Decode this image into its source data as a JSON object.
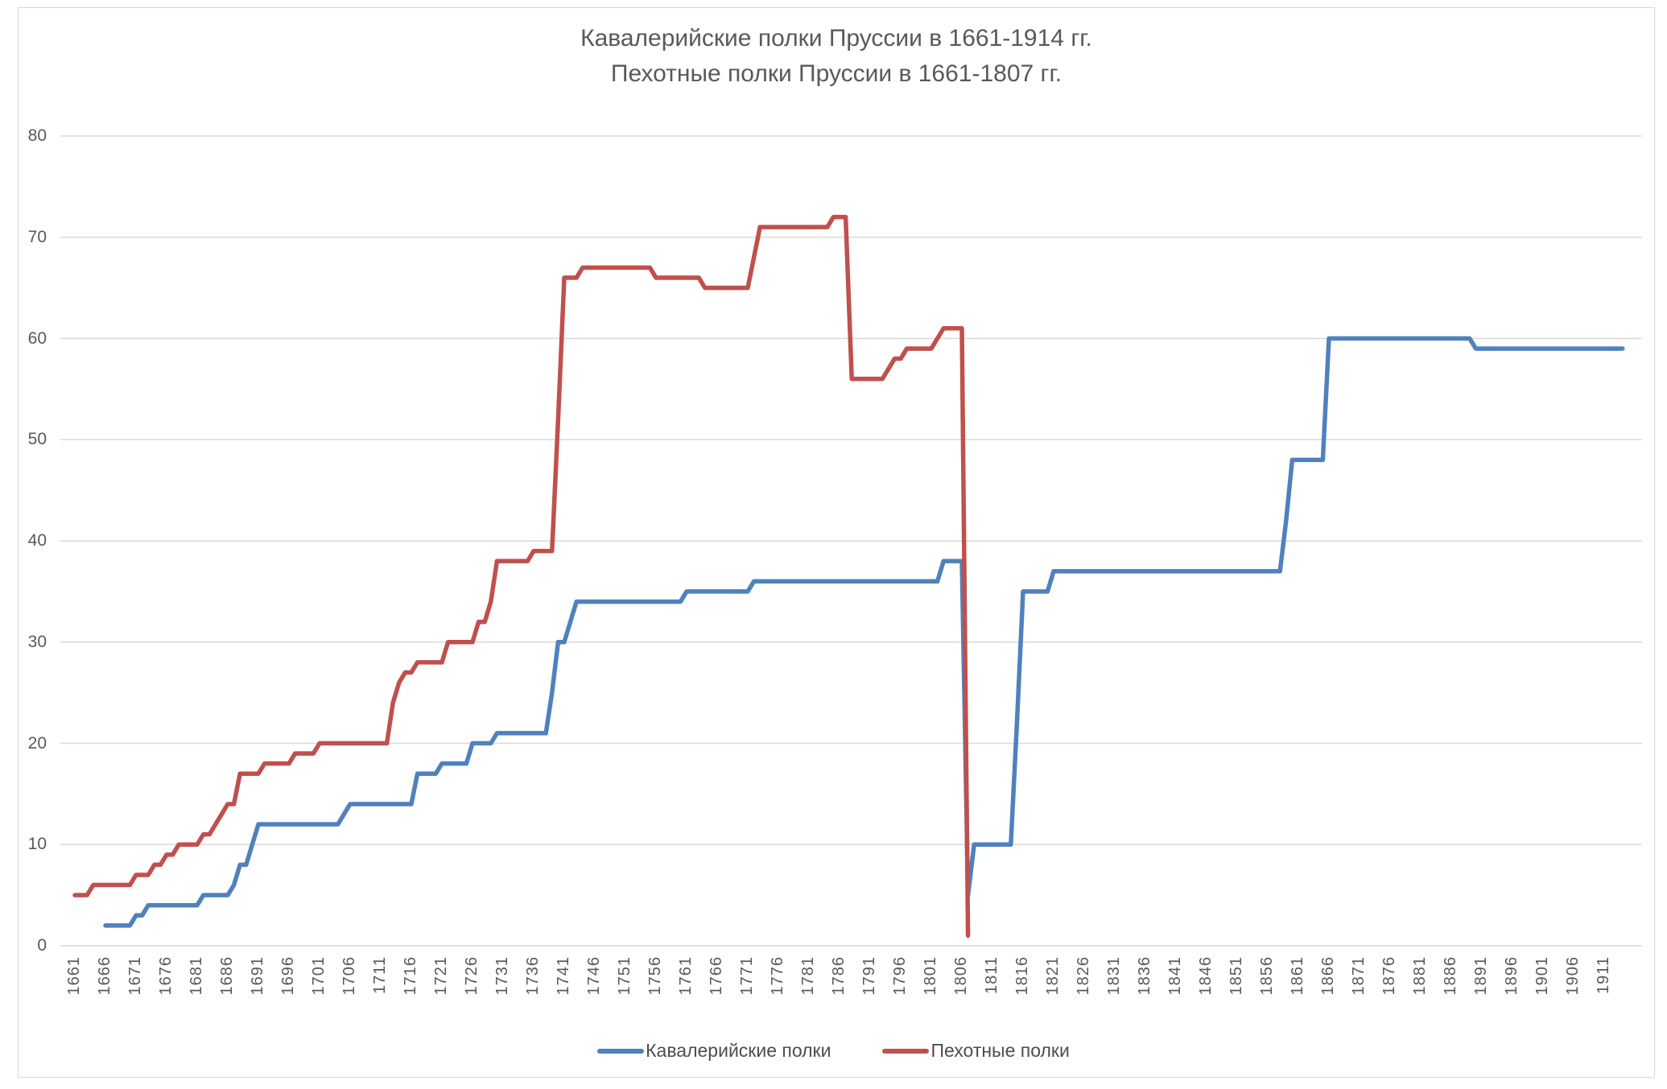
{
  "chart_data": {
    "type": "line",
    "title_line1": "Кавалерийские полки Пруссии в 1661-1914 гг.",
    "title_line2": "Пехотные полки Пруссии в 1661-1807 гг.",
    "grid": true,
    "legend_position": "bottom",
    "background": "#ffffff",
    "gridline_color": "#d9d9d9",
    "text_color": "#595959",
    "x_axis": {
      "start": 1661,
      "end": 1911,
      "tick_step": 5,
      "tick_labels": [
        "1661",
        "1666",
        "1671",
        "1676",
        "1681",
        "1686",
        "1691",
        "1696",
        "1701",
        "1706",
        "1711",
        "1716",
        "1721",
        "1726",
        "1731",
        "1736",
        "1741",
        "1746",
        "1751",
        "1756",
        "1761",
        "1766",
        "1771",
        "1776",
        "1781",
        "1786",
        "1791",
        "1796",
        "1801",
        "1806",
        "1811",
        "1816",
        "1821",
        "1826",
        "1831",
        "1836",
        "1841",
        "1846",
        "1851",
        "1856",
        "1861",
        "1866",
        "1871",
        "1876",
        "1881",
        "1886",
        "1891",
        "1896",
        "1901",
        "1906",
        "1911"
      ]
    },
    "y_axis": {
      "min": 0,
      "max": 80,
      "tick_step": 10,
      "ticks": [
        0,
        10,
        20,
        30,
        40,
        50,
        60,
        70,
        80
      ]
    },
    "series": [
      {
        "name": "Кавалерийские полки",
        "color": "#4F81BD",
        "first_year": 1666,
        "last_year": 1914,
        "segments": [
          [
            1666,
            1670,
            2
          ],
          [
            1671,
            1672,
            3
          ],
          [
            1673,
            1681,
            4
          ],
          [
            1682,
            1686,
            5
          ],
          [
            1687,
            1687,
            6
          ],
          [
            1688,
            1689,
            8
          ],
          [
            1690,
            1690,
            10
          ],
          [
            1691,
            1704,
            12
          ],
          [
            1705,
            1705,
            13
          ],
          [
            1706,
            1716,
            14
          ],
          [
            1717,
            1720,
            17
          ],
          [
            1721,
            1725,
            18
          ],
          [
            1726,
            1729,
            20
          ],
          [
            1730,
            1738,
            21
          ],
          [
            1739,
            1739,
            25
          ],
          [
            1740,
            1741,
            30
          ],
          [
            1742,
            1742,
            32
          ],
          [
            1743,
            1760,
            34
          ],
          [
            1761,
            1771,
            35
          ],
          [
            1772,
            1802,
            36
          ],
          [
            1803,
            1806,
            38
          ],
          [
            1807,
            1807,
            5
          ],
          [
            1808,
            1814,
            10
          ],
          [
            1815,
            1815,
            22
          ],
          [
            1816,
            1820,
            35
          ],
          [
            1821,
            1858,
            37
          ],
          [
            1859,
            1859,
            42
          ],
          [
            1860,
            1865,
            48
          ],
          [
            1866,
            1889,
            60
          ],
          [
            1890,
            1914,
            59
          ]
        ]
      },
      {
        "name": "Пехотные полки",
        "color": "#C0504D",
        "first_year": 1661,
        "last_year": 1807,
        "segments": [
          [
            1661,
            1663,
            5
          ],
          [
            1664,
            1670,
            6
          ],
          [
            1671,
            1673,
            7
          ],
          [
            1674,
            1675,
            8
          ],
          [
            1676,
            1677,
            9
          ],
          [
            1678,
            1681,
            10
          ],
          [
            1682,
            1683,
            11
          ],
          [
            1684,
            1684,
            12
          ],
          [
            1685,
            1685,
            13
          ],
          [
            1686,
            1687,
            14
          ],
          [
            1688,
            1691,
            17
          ],
          [
            1692,
            1696,
            18
          ],
          [
            1697,
            1700,
            19
          ],
          [
            1701,
            1712,
            20
          ],
          [
            1713,
            1713,
            24
          ],
          [
            1714,
            1714,
            26
          ],
          [
            1715,
            1716,
            27
          ],
          [
            1717,
            1721,
            28
          ],
          [
            1722,
            1726,
            30
          ],
          [
            1727,
            1728,
            32
          ],
          [
            1729,
            1729,
            34
          ],
          [
            1730,
            1735,
            38
          ],
          [
            1736,
            1739,
            39
          ],
          [
            1740,
            1740,
            52
          ],
          [
            1741,
            1743,
            66
          ],
          [
            1744,
            1755,
            67
          ],
          [
            1756,
            1763,
            66
          ],
          [
            1764,
            1771,
            65
          ],
          [
            1772,
            1772,
            68
          ],
          [
            1773,
            1784,
            71
          ],
          [
            1785,
            1787,
            72
          ],
          [
            1788,
            1793,
            56
          ],
          [
            1794,
            1794,
            57
          ],
          [
            1795,
            1796,
            58
          ],
          [
            1797,
            1801,
            59
          ],
          [
            1802,
            1802,
            60
          ],
          [
            1803,
            1806,
            61
          ],
          [
            1807,
            1807,
            1
          ]
        ]
      }
    ]
  }
}
